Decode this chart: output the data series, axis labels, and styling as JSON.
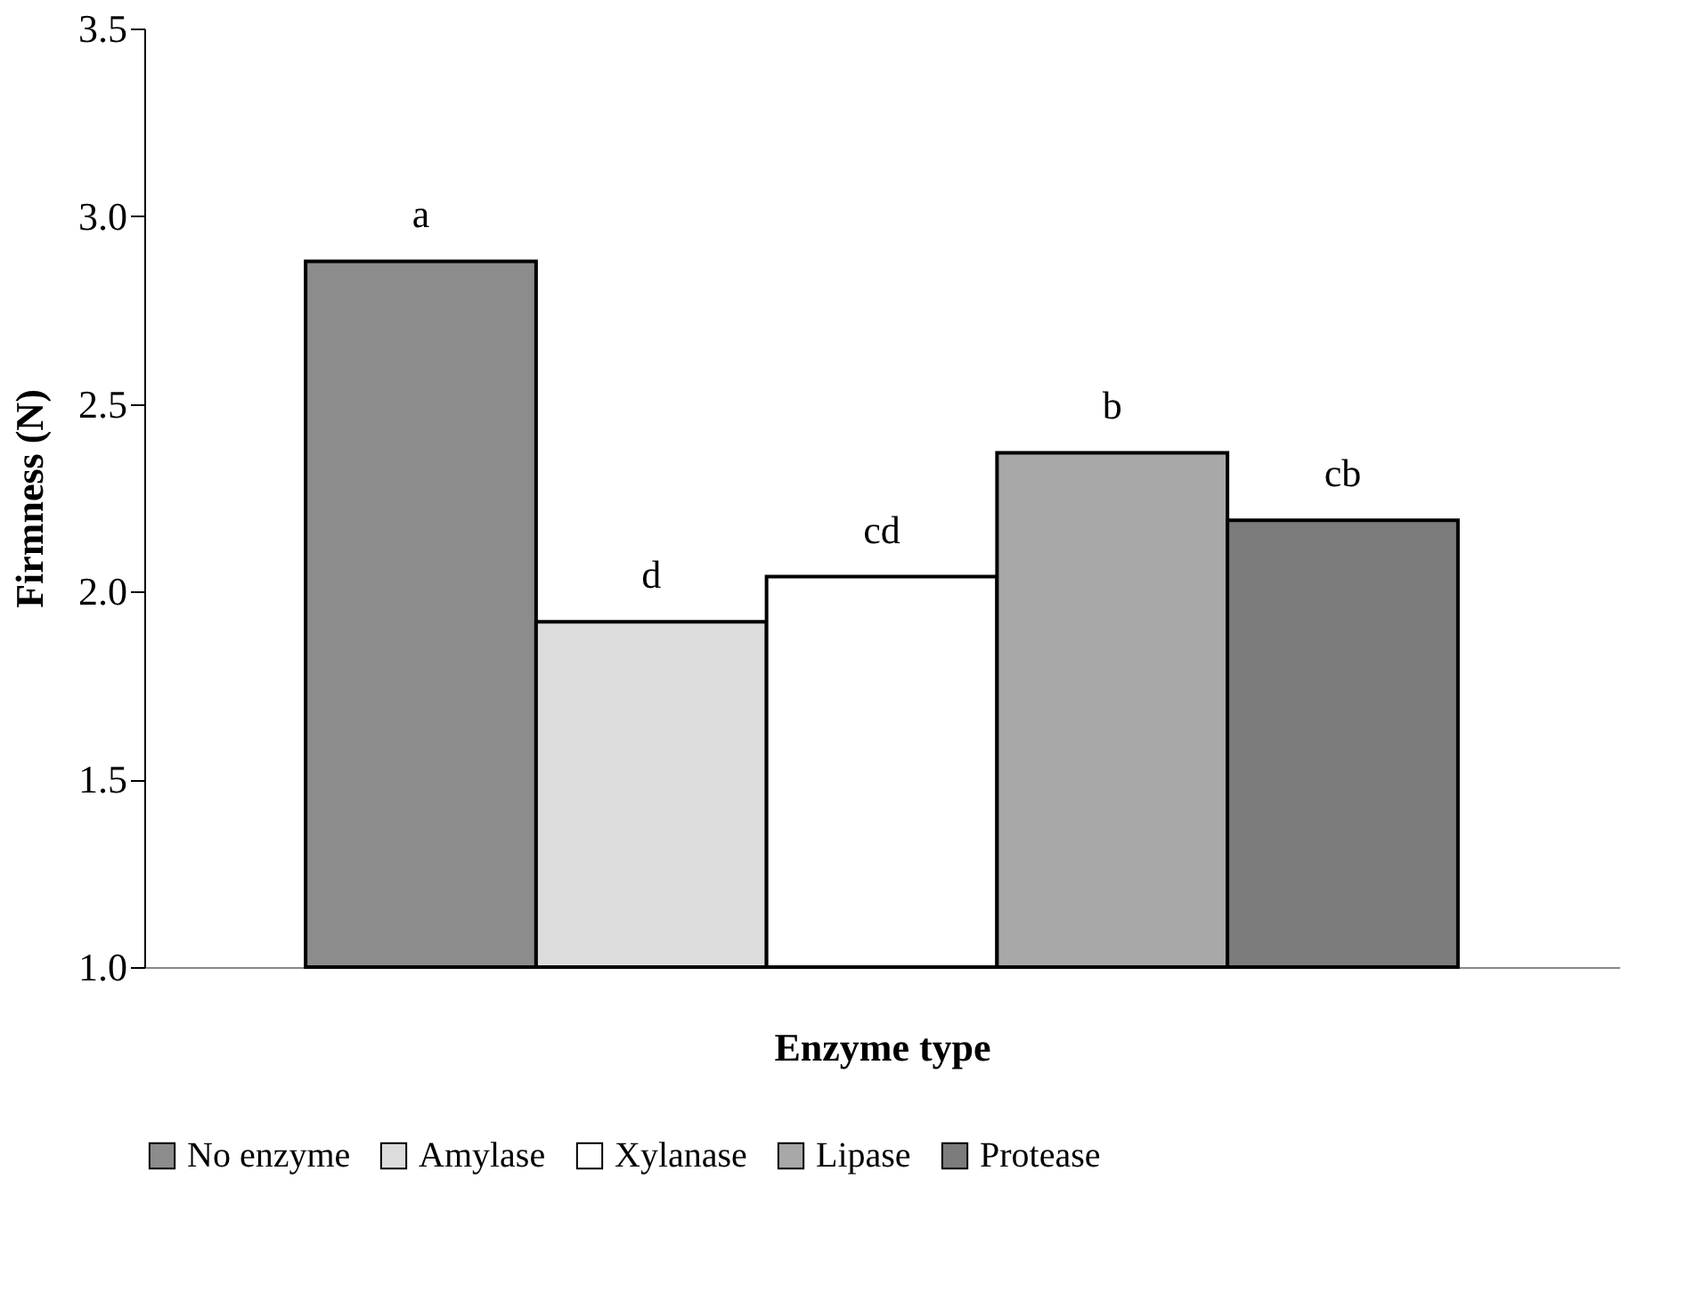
{
  "chart_data": {
    "type": "bar",
    "xlabel": "Enzyme type",
    "ylabel": "Firmness (N)",
    "categories": [
      null
    ],
    "series": [
      {
        "name": "No enzyme",
        "color": "#8c8c8c",
        "values": [
          2.88
        ]
      },
      {
        "name": "Amylase",
        "color": "#dcdcdc",
        "values": [
          1.92
        ]
      },
      {
        "name": "Xylanase",
        "color": "#ffffff",
        "values": [
          2.04
        ]
      },
      {
        "name": "Lipase",
        "color": "#a8a8a8",
        "values": [
          2.37
        ]
      },
      {
        "name": "Protease",
        "color": "#7c7c7c",
        "values": [
          2.19
        ]
      }
    ],
    "ylim": [
      1.0,
      3.5
    ],
    "yticks": [
      {
        "value": 1.0,
        "label": "1.0"
      },
      1.5,
      {
        "value": 2.0,
        "label": "2.0"
      },
      2.5,
      {
        "value": 3.0,
        "label": "3.0"
      },
      3.5
    ],
    "annotations": [
      "a",
      "d",
      "cd",
      "b",
      "cb"
    ],
    "grid": false,
    "legend": "bottom"
  }
}
